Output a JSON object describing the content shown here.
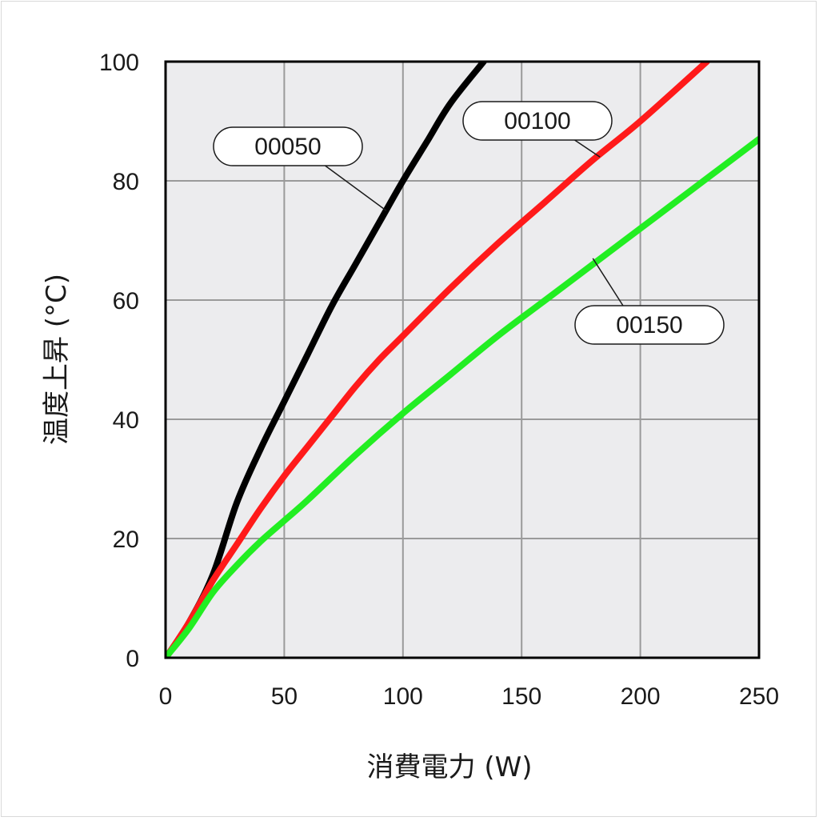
{
  "chart_data": {
    "type": "line",
    "xlabel": "消費電力 (W)",
    "ylabel": "温度上昇 (°C)",
    "xlim": [
      0,
      250
    ],
    "ylim": [
      0,
      100
    ],
    "x_ticks": [
      0,
      50,
      100,
      150,
      200,
      250
    ],
    "y_ticks": [
      0,
      20,
      40,
      60,
      80,
      100
    ],
    "grid": true,
    "background": "#ececee",
    "series": [
      {
        "name": "00050",
        "color": "#000000",
        "x": [
          1,
          10,
          20,
          30,
          40,
          50,
          60,
          70,
          80,
          90,
          100,
          110,
          120,
          134
        ],
        "y": [
          0.5,
          6,
          14,
          26,
          35,
          43,
          51,
          59,
          66,
          73,
          80,
          86.5,
          93,
          100
        ]
      },
      {
        "name": "00100",
        "color": "#ff1a1a",
        "x": [
          1,
          10,
          20,
          30,
          40,
          50,
          60,
          70,
          80,
          90,
          100,
          120,
          140,
          160,
          180,
          200,
          228
        ],
        "y": [
          0.5,
          6,
          13,
          19,
          25,
          30.5,
          35.5,
          40.5,
          45.5,
          50,
          54,
          62,
          69.5,
          76.5,
          83.5,
          90,
          100
        ]
      },
      {
        "name": "00150",
        "color": "#22ee22",
        "x": [
          1,
          10,
          20,
          30,
          40,
          50,
          60,
          80,
          100,
          120,
          140,
          160,
          180,
          200,
          220,
          250
        ],
        "y": [
          0.5,
          5,
          11,
          15.5,
          19.5,
          23,
          26.5,
          34,
          41,
          47.5,
          54,
          60,
          66,
          72,
          78,
          87
        ]
      }
    ],
    "callouts": [
      {
        "series": "00050",
        "label": "00050",
        "point": [
          93,
          75
        ]
      },
      {
        "series": "00100",
        "label": "00100",
        "point": [
          183,
          84
        ]
      },
      {
        "series": "00150",
        "label": "00150",
        "point": [
          180,
          67
        ]
      }
    ]
  }
}
